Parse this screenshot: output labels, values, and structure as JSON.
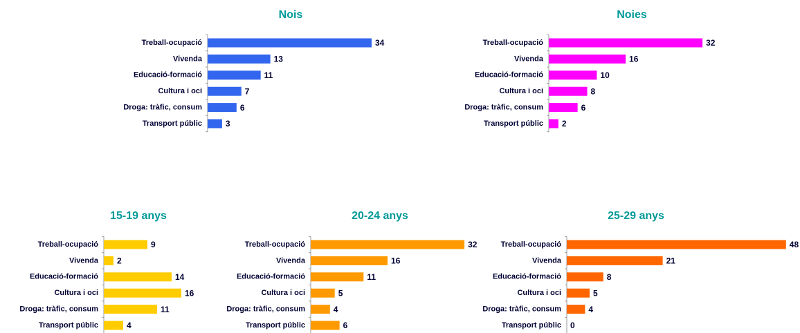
{
  "chart_data": [
    {
      "type": "bar",
      "title": "Nois",
      "color": "#3366ee",
      "categories": [
        "Treball-ocupació",
        "Vivenda",
        "Educació-formació",
        "Cultura i oci",
        "Droga: tràfic, consum",
        "Transport  públic"
      ],
      "values": [
        34,
        13,
        11,
        7,
        6,
        3
      ]
    },
    {
      "type": "bar",
      "title": "Noies",
      "color": "#ff00ff",
      "categories": [
        "Treball-ocupació",
        "Vivenda",
        "Educació-formació",
        "Cultura i oci",
        "Droga: tràfic, consum",
        "Transport  públic"
      ],
      "values": [
        32,
        16,
        10,
        8,
        6,
        2
      ]
    },
    {
      "type": "bar",
      "title": "15-19 anys",
      "color": "#ffcc00",
      "categories": [
        "Treball-ocupació",
        "Vivenda",
        "Educació-formació",
        "Cultura i oci",
        "Droga: tràfic, consum",
        "Transport públic"
      ],
      "values": [
        9,
        2,
        14,
        16,
        11,
        4
      ]
    },
    {
      "type": "bar",
      "title": "20-24 anys",
      "color": "#ff9900",
      "categories": [
        "Treball-ocupació",
        "Vivenda",
        "Educació-formació",
        "Cultura i oci",
        "Droga: tràfic, consum",
        "Transport  públic"
      ],
      "values": [
        32,
        16,
        11,
        5,
        4,
        6
      ]
    },
    {
      "type": "bar",
      "title": "25-29 anys",
      "color": "#ff6600",
      "categories": [
        "Treball-ocupació",
        "Vivenda",
        "Educació-formació",
        "Cultura i oci",
        "Droga: tràfic, consum",
        "Transport  públic"
      ],
      "values": [
        48,
        21,
        8,
        5,
        4,
        0
      ]
    }
  ]
}
